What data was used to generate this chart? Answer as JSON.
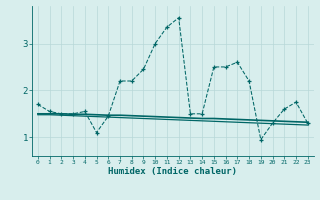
{
  "xlabel": "Humidex (Indice chaleur)",
  "x": [
    0,
    1,
    2,
    3,
    4,
    5,
    6,
    7,
    8,
    9,
    10,
    11,
    12,
    13,
    14,
    15,
    16,
    17,
    18,
    19,
    20,
    21,
    22,
    23
  ],
  "main_line_y": [
    1.7,
    1.55,
    1.5,
    1.5,
    1.55,
    1.1,
    1.45,
    2.2,
    2.2,
    2.45,
    3.0,
    3.35,
    3.55,
    1.5,
    1.5,
    2.5,
    2.5,
    2.6,
    2.2,
    0.95,
    1.3,
    1.6,
    1.75,
    1.3
  ],
  "flat_line1_y": [
    1.5,
    1.5,
    1.5,
    1.49,
    1.49,
    1.48,
    1.47,
    1.47,
    1.46,
    1.45,
    1.44,
    1.43,
    1.42,
    1.41,
    1.4,
    1.4,
    1.39,
    1.38,
    1.37,
    1.36,
    1.35,
    1.34,
    1.33,
    1.32
  ],
  "flat_line2_y": [
    1.48,
    1.48,
    1.47,
    1.46,
    1.45,
    1.44,
    1.43,
    1.42,
    1.41,
    1.4,
    1.39,
    1.38,
    1.37,
    1.36,
    1.35,
    1.34,
    1.33,
    1.32,
    1.31,
    1.3,
    1.29,
    1.28,
    1.27,
    1.26
  ],
  "bg_color": "#d8eeed",
  "line_color": "#006666",
  "grid_color": "#b8d8d8",
  "yticks": [
    1,
    2,
    3
  ],
  "ylim": [
    0.6,
    3.8
  ],
  "xlim": [
    -0.5,
    23.5
  ]
}
